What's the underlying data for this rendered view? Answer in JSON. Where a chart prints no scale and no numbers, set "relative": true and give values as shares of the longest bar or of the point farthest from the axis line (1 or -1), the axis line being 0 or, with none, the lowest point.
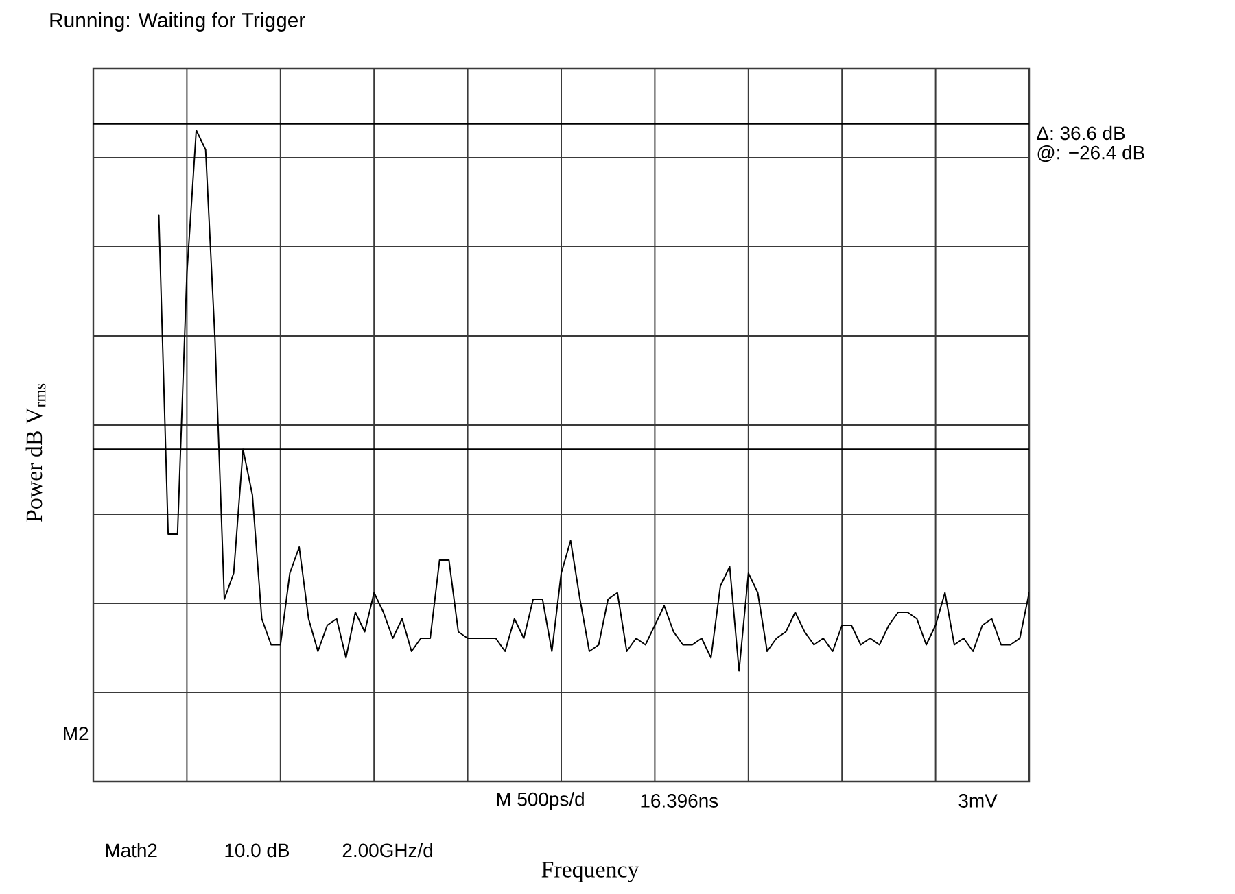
{
  "chart_data": {
    "type": "line",
    "title": "Running: Waiting for Trigger",
    "ylabel": "Power dB V$_{rms}$",
    "relative": true,
    "grid": true,
    "tick_labels": false,
    "color": "#000000",
    "categories": [
      null,
      null,
      null,
      null,
      null,
      null,
      null,
      null,
      null,
      null,
      null,
      null,
      null,
      null,
      null,
      null,
      null,
      null,
      null,
      null,
      null,
      null,
      null,
      null,
      null,
      null,
      null,
      null,
      null,
      null,
      null,
      null,
      null,
      null,
      null,
      null,
      null,
      null,
      null,
      null,
      null,
      null,
      null,
      null,
      null,
      null,
      null,
      null,
      null,
      null,
      null,
      null,
      null,
      null,
      null,
      null,
      null,
      null,
      null,
      null,
      null,
      null,
      null,
      null,
      null,
      null,
      null,
      null,
      null,
      null,
      null,
      null,
      null,
      null,
      null,
      null,
      null,
      null,
      null,
      null,
      null,
      null,
      null,
      null,
      null,
      null,
      null,
      null,
      null,
      null,
      null,
      null,
      null,
      null
    ],
    "values": [
      0.87,
      0.38,
      0.38,
      0.78,
      1,
      0.97,
      0.68,
      0.28,
      0.32,
      0.51,
      0.44,
      0.25,
      0.21,
      0.21,
      0.32,
      0.36,
      0.25,
      0.2,
      0.24,
      0.25,
      0.19,
      0.26,
      0.23,
      0.29,
      0.26,
      0.22,
      0.25,
      0.2,
      0.22,
      0.22,
      0.34,
      0.34,
      0.23,
      0.22,
      0.22,
      0.22,
      0.22,
      0.2,
      0.25,
      0.22,
      0.28,
      0.28,
      0.2,
      0.32,
      0.37,
      0.28,
      0.2,
      0.21,
      0.28,
      0.29,
      0.2,
      0.22,
      0.21,
      0.24,
      0.27,
      0.23,
      0.21,
      0.21,
      0.22,
      0.19,
      0.3,
      0.33,
      0.17,
      0.32,
      0.29,
      0.2,
      0.22,
      0.23,
      0.26,
      0.23,
      0.21,
      0.22,
      0.2,
      0.24,
      0.24,
      0.21,
      0.22,
      0.21,
      0.24,
      0.26,
      0.26,
      0.25,
      0.21,
      0.24,
      0.29,
      0.21,
      0.22,
      0.2,
      0.24,
      0.25,
      0.21,
      0.21,
      0.22,
      0.29
    ],
    "ref_lines": [
      {
        "axis": "y",
        "value": 1.01
      },
      {
        "axis": "y",
        "value": 0.51
      }
    ],
    "annotations": [
      "Δ: 36.6 dB",
      "@: −26.4 dB",
      "M2",
      "M  500ps/d",
      "16.396ns",
      "3mV",
      "Math2",
      "10.0 dB",
      "2.00GHz/d",
      "Frequency"
    ]
  }
}
